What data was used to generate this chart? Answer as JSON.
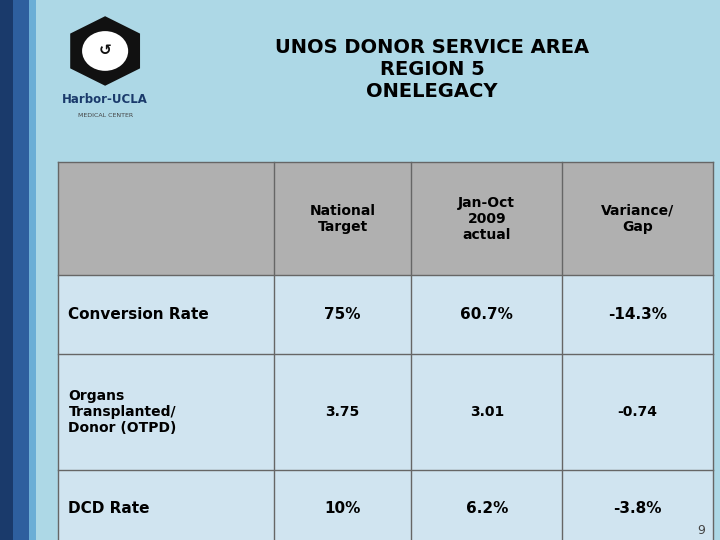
{
  "background_color": "#ADD8E6",
  "title_lines": [
    "UNOS DONOR SERVICE AREA",
    "REGION 5",
    "ONELEGACY"
  ],
  "title_fontsize": 14,
  "title_color": "#000000",
  "table_header_bg": "#B0B0B0",
  "table_border_color": "#666666",
  "columns": [
    "",
    "National\nTarget",
    "Jan-Oct\n2009\nactual",
    "Variance/\nGap"
  ],
  "rows": [
    [
      "Conversion Rate",
      "75%",
      "60.7%",
      "-14.3%"
    ],
    [
      "Organs\nTransplanted/\nDonor (OTPD)",
      "3.75",
      "3.01",
      "-0.74"
    ],
    [
      "DCD Rate",
      "10%",
      "6.2%",
      "-3.8%"
    ]
  ],
  "sidebar_dark": "#1A3A6B",
  "sidebar_mid": "#2E5F9E",
  "sidebar_light": "#6BAED6",
  "page_number": "9",
  "logo_text_main": "Harbor-UCLA",
  "logo_text_sub": "MEDICAL CENTER"
}
